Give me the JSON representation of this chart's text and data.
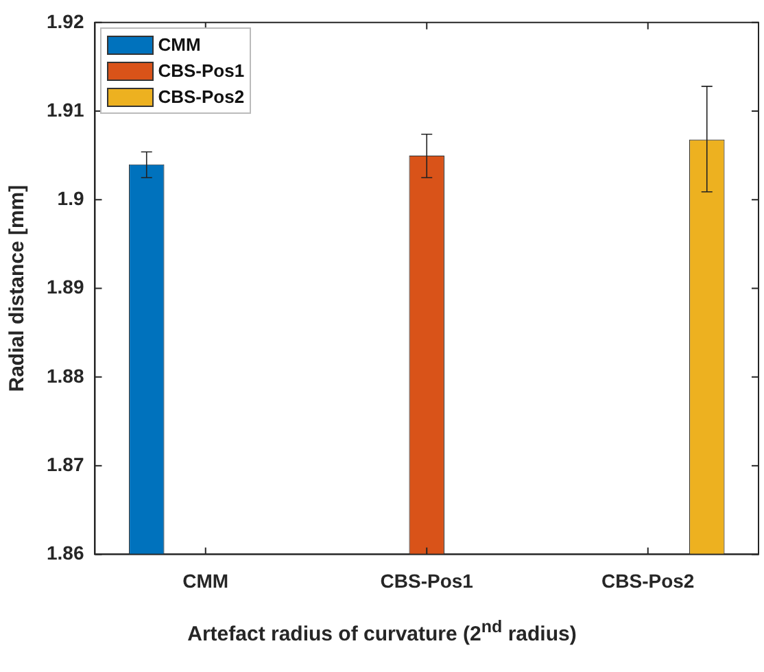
{
  "chart_data": {
    "type": "bar",
    "xlabel": "Artefact radius of curvature (2$^{nd}$ radius)",
    "ylabel": "Radial distance [mm]",
    "categories": [
      "CMM",
      "CBS-Pos1",
      "CBS-Pos2"
    ],
    "series": [
      {
        "name": "CMM",
        "color": "#0072bd",
        "values": [
          1.904,
          null,
          null
        ],
        "errors": [
          [
            1.9025,
            1.9054
          ],
          null,
          null
        ]
      },
      {
        "name": "CBS-Pos1",
        "color": "#d95319",
        "values": [
          null,
          1.905,
          null
        ],
        "errors": [
          null,
          [
            1.9025,
            1.9074
          ],
          null
        ]
      },
      {
        "name": "CBS-Pos2",
        "color": "#edb120",
        "values": [
          null,
          null,
          1.9068
        ],
        "errors": [
          null,
          null,
          [
            1.9009,
            1.9128
          ]
        ]
      }
    ],
    "ylim": [
      1.86,
      1.92
    ],
    "yticks": [
      1.86,
      1.87,
      1.88,
      1.89,
      1.9,
      1.91,
      1.92
    ],
    "grid": false,
    "legend": "top left"
  }
}
